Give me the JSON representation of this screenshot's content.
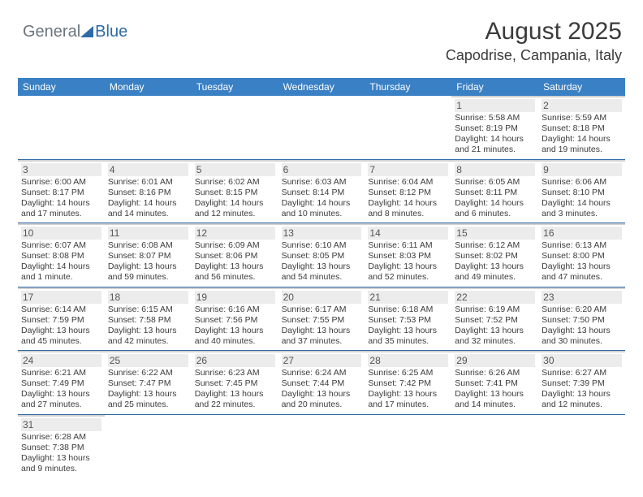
{
  "logo": {
    "part1": "General",
    "part2": "Blue"
  },
  "title": "August 2025",
  "subtitle": "Capodrise, Campania, Italy",
  "colors": {
    "header_bg": "#3a80c4",
    "header_text": "#ffffff",
    "week_border": "#2f6aa8",
    "daynum_bg": "#ececec",
    "day_border": "#d1d1d1",
    "text": "#3b3b3b"
  },
  "weekdays": [
    "Sunday",
    "Monday",
    "Tuesday",
    "Wednesday",
    "Thursday",
    "Friday",
    "Saturday"
  ],
  "weeks": [
    [
      null,
      null,
      null,
      null,
      null,
      {
        "n": "1",
        "sunrise": "5:58 AM",
        "sunset": "8:19 PM",
        "daylight": "14 hours and 21 minutes."
      },
      {
        "n": "2",
        "sunrise": "5:59 AM",
        "sunset": "8:18 PM",
        "daylight": "14 hours and 19 minutes."
      }
    ],
    [
      {
        "n": "3",
        "sunrise": "6:00 AM",
        "sunset": "8:17 PM",
        "daylight": "14 hours and 17 minutes."
      },
      {
        "n": "4",
        "sunrise": "6:01 AM",
        "sunset": "8:16 PM",
        "daylight": "14 hours and 14 minutes."
      },
      {
        "n": "5",
        "sunrise": "6:02 AM",
        "sunset": "8:15 PM",
        "daylight": "14 hours and 12 minutes."
      },
      {
        "n": "6",
        "sunrise": "6:03 AM",
        "sunset": "8:14 PM",
        "daylight": "14 hours and 10 minutes."
      },
      {
        "n": "7",
        "sunrise": "6:04 AM",
        "sunset": "8:12 PM",
        "daylight": "14 hours and 8 minutes."
      },
      {
        "n": "8",
        "sunrise": "6:05 AM",
        "sunset": "8:11 PM",
        "daylight": "14 hours and 6 minutes."
      },
      {
        "n": "9",
        "sunrise": "6:06 AM",
        "sunset": "8:10 PM",
        "daylight": "14 hours and 3 minutes."
      }
    ],
    [
      {
        "n": "10",
        "sunrise": "6:07 AM",
        "sunset": "8:08 PM",
        "daylight": "14 hours and 1 minute."
      },
      {
        "n": "11",
        "sunrise": "6:08 AM",
        "sunset": "8:07 PM",
        "daylight": "13 hours and 59 minutes."
      },
      {
        "n": "12",
        "sunrise": "6:09 AM",
        "sunset": "8:06 PM",
        "daylight": "13 hours and 56 minutes."
      },
      {
        "n": "13",
        "sunrise": "6:10 AM",
        "sunset": "8:05 PM",
        "daylight": "13 hours and 54 minutes."
      },
      {
        "n": "14",
        "sunrise": "6:11 AM",
        "sunset": "8:03 PM",
        "daylight": "13 hours and 52 minutes."
      },
      {
        "n": "15",
        "sunrise": "6:12 AM",
        "sunset": "8:02 PM",
        "daylight": "13 hours and 49 minutes."
      },
      {
        "n": "16",
        "sunrise": "6:13 AM",
        "sunset": "8:00 PM",
        "daylight": "13 hours and 47 minutes."
      }
    ],
    [
      {
        "n": "17",
        "sunrise": "6:14 AM",
        "sunset": "7:59 PM",
        "daylight": "13 hours and 45 minutes."
      },
      {
        "n": "18",
        "sunrise": "6:15 AM",
        "sunset": "7:58 PM",
        "daylight": "13 hours and 42 minutes."
      },
      {
        "n": "19",
        "sunrise": "6:16 AM",
        "sunset": "7:56 PM",
        "daylight": "13 hours and 40 minutes."
      },
      {
        "n": "20",
        "sunrise": "6:17 AM",
        "sunset": "7:55 PM",
        "daylight": "13 hours and 37 minutes."
      },
      {
        "n": "21",
        "sunrise": "6:18 AM",
        "sunset": "7:53 PM",
        "daylight": "13 hours and 35 minutes."
      },
      {
        "n": "22",
        "sunrise": "6:19 AM",
        "sunset": "7:52 PM",
        "daylight": "13 hours and 32 minutes."
      },
      {
        "n": "23",
        "sunrise": "6:20 AM",
        "sunset": "7:50 PM",
        "daylight": "13 hours and 30 minutes."
      }
    ],
    [
      {
        "n": "24",
        "sunrise": "6:21 AM",
        "sunset": "7:49 PM",
        "daylight": "13 hours and 27 minutes."
      },
      {
        "n": "25",
        "sunrise": "6:22 AM",
        "sunset": "7:47 PM",
        "daylight": "13 hours and 25 minutes."
      },
      {
        "n": "26",
        "sunrise": "6:23 AM",
        "sunset": "7:45 PM",
        "daylight": "13 hours and 22 minutes."
      },
      {
        "n": "27",
        "sunrise": "6:24 AM",
        "sunset": "7:44 PM",
        "daylight": "13 hours and 20 minutes."
      },
      {
        "n": "28",
        "sunrise": "6:25 AM",
        "sunset": "7:42 PM",
        "daylight": "13 hours and 17 minutes."
      },
      {
        "n": "29",
        "sunrise": "6:26 AM",
        "sunset": "7:41 PM",
        "daylight": "13 hours and 14 minutes."
      },
      {
        "n": "30",
        "sunrise": "6:27 AM",
        "sunset": "7:39 PM",
        "daylight": "13 hours and 12 minutes."
      }
    ],
    [
      {
        "n": "31",
        "sunrise": "6:28 AM",
        "sunset": "7:38 PM",
        "daylight": "13 hours and 9 minutes."
      },
      null,
      null,
      null,
      null,
      null,
      null
    ]
  ]
}
